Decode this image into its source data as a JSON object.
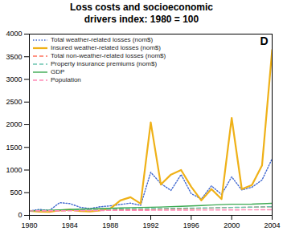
{
  "chart_data": {
    "type": "line",
    "title": "Loss costs and socioeconomic\ndrivers index: 1980 = 100",
    "x": [
      1980,
      1981,
      1982,
      1983,
      1984,
      1985,
      1986,
      1987,
      1988,
      1989,
      1990,
      1991,
      1992,
      1993,
      1994,
      1995,
      1996,
      1997,
      1998,
      1999,
      2000,
      2001,
      2002,
      2003,
      2004
    ],
    "series": [
      {
        "name": "Total weather-related losses (nom$)",
        "line_style": "dotted",
        "values": [
          100,
          130,
          110,
          280,
          260,
          180,
          150,
          190,
          210,
          240,
          270,
          220,
          950,
          700,
          550,
          900,
          480,
          360,
          650,
          460,
          850,
          560,
          620,
          780,
          1250
        ]
      },
      {
        "name": "Insured weather-related losses (nom$)",
        "line_style": "solid",
        "values": [
          100,
          80,
          75,
          110,
          125,
          95,
          85,
          110,
          150,
          330,
          400,
          260,
          2050,
          680,
          900,
          1000,
          630,
          330,
          580,
          360,
          2150,
          580,
          670,
          1100,
          3650
        ]
      },
      {
        "name": "Total non-weather-related losses (nom$)",
        "line_style": "dashed",
        "values": [
          100,
          100,
          100,
          100,
          105,
          105,
          110,
          110,
          115,
          120,
          125,
          125,
          130,
          135,
          140,
          145,
          150,
          155,
          160,
          170,
          175,
          175,
          180,
          185,
          190
        ]
      },
      {
        "name": "Property insurance premiums (nom$)",
        "line_style": "dashed",
        "values": [
          100,
          105,
          108,
          112,
          118,
          125,
          130,
          135,
          138,
          142,
          145,
          148,
          150,
          152,
          155,
          157,
          160,
          163,
          166,
          170,
          175,
          178,
          182,
          186,
          192
        ]
      },
      {
        "name": "GDP",
        "line_style": "solid",
        "values": [
          100,
          108,
          112,
          120,
          128,
          136,
          142,
          150,
          157,
          163,
          170,
          175,
          179,
          184,
          192,
          199,
          208,
          218,
          227,
          236,
          245,
          245,
          248,
          256,
          265
        ]
      },
      {
        "name": "Population",
        "line_style": "dashed",
        "values": [
          100,
          101,
          102,
          103,
          104,
          105,
          106,
          107,
          108,
          109,
          110,
          111,
          112,
          113,
          114,
          115,
          116,
          117,
          118,
          119,
          120,
          121,
          122,
          123,
          124
        ]
      }
    ],
    "xlim": [
      1980,
      2004
    ],
    "xticks": [
      1980,
      1984,
      1988,
      1992,
      1996,
      2000,
      2004
    ],
    "ylim": [
      0,
      4000
    ],
    "yticks": [
      0,
      500,
      1000,
      1500,
      2000,
      2500,
      3000,
      3500,
      4000
    ],
    "grid": false,
    "legend": "upper left",
    "annotations": [
      "D"
    ]
  }
}
